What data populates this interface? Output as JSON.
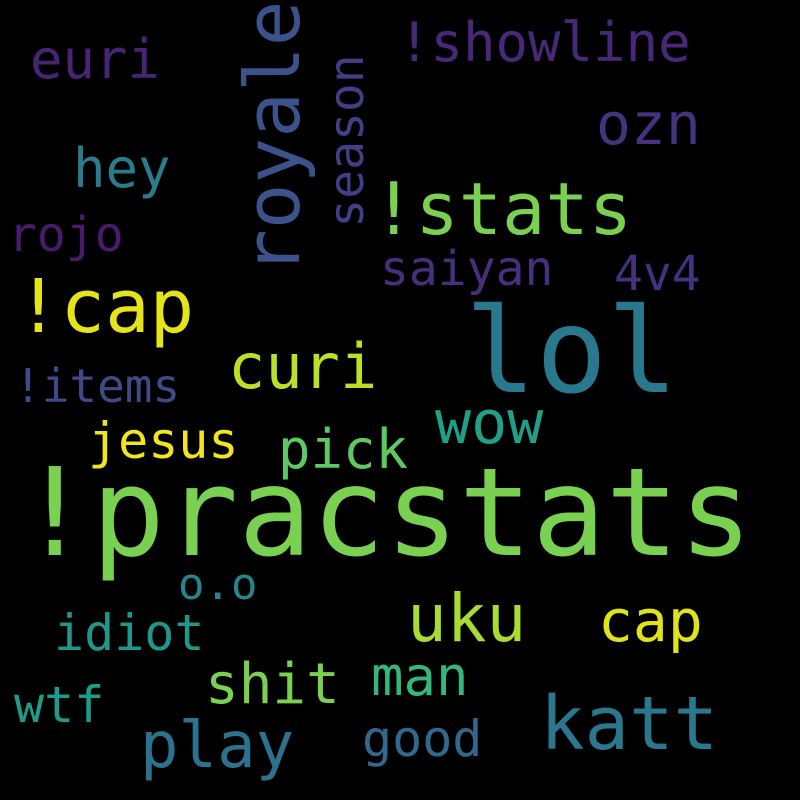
{
  "background": "#000000",
  "words": [
    {
      "key": "pracstats",
      "text": "!pracstats",
      "color": "#7AD151"
    },
    {
      "key": "lol",
      "text": "lol",
      "color": "#2A788E"
    },
    {
      "key": "royale",
      "text": "royale",
      "color": "#3B528B"
    },
    {
      "key": "stats",
      "text": "!stats",
      "color": "#7AD151"
    },
    {
      "key": "cap1",
      "text": "!cap",
      "color": "#E4E419"
    },
    {
      "key": "curi",
      "text": "curi",
      "color": "#BDDF26"
    },
    {
      "key": "uku",
      "text": "uku",
      "color": "#A8DB34"
    },
    {
      "key": "katt",
      "text": "katt",
      "color": "#2A788E"
    },
    {
      "key": "play",
      "text": "play",
      "color": "#2C718E"
    },
    {
      "key": "shit",
      "text": "shit",
      "color": "#7AD151"
    },
    {
      "key": "wow",
      "text": "wow",
      "color": "#1FA088"
    },
    {
      "key": "season",
      "text": "season",
      "color": "#433E85"
    },
    {
      "key": "showline",
      "text": "!showline",
      "color": "#482878"
    },
    {
      "key": "ozn",
      "text": "ozn",
      "color": "#46337F"
    },
    {
      "key": "hey",
      "text": "hey",
      "color": "#2A7B8E"
    },
    {
      "key": "euri",
      "text": "euri",
      "color": "#482475"
    },
    {
      "key": "rojo",
      "text": "rojo",
      "color": "#481B6D"
    },
    {
      "key": "saiyan",
      "text": "saiyan",
      "color": "#472F7D"
    },
    {
      "key": "4v4",
      "text": "4v4",
      "color": "#46317E"
    },
    {
      "key": "items",
      "text": "!items",
      "color": "#3E4A89"
    },
    {
      "key": "jesus",
      "text": "jesus",
      "color": "#F1E51D"
    },
    {
      "key": "pick",
      "text": "pick",
      "color": "#5EC962"
    },
    {
      "key": "oo",
      "text": "o.o",
      "color": "#25858E"
    },
    {
      "key": "idiot",
      "text": "idiot",
      "color": "#1F988B"
    },
    {
      "key": "cap2",
      "text": "cap",
      "color": "#DFE318"
    },
    {
      "key": "man",
      "text": "man",
      "color": "#35B779"
    },
    {
      "key": "wtf",
      "text": "wtf",
      "color": "#1E9C89"
    },
    {
      "key": "good",
      "text": "good",
      "color": "#31688E"
    }
  ]
}
